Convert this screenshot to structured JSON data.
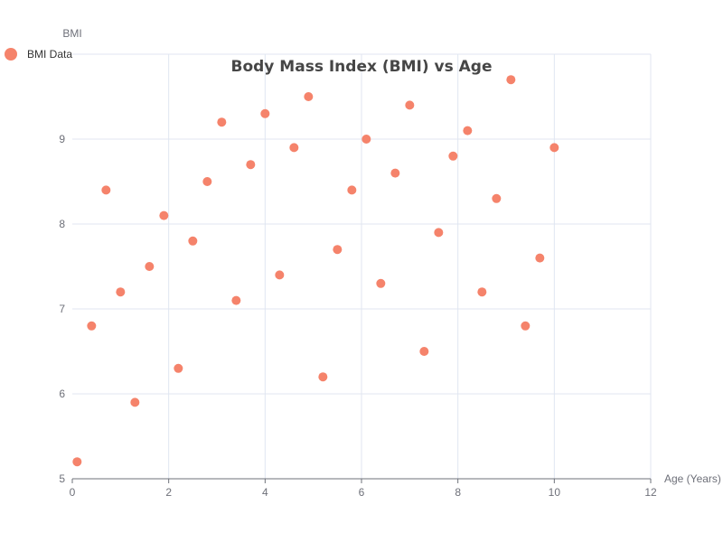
{
  "chart_data": {
    "type": "scatter",
    "title": "Body Mass Index (BMI) vs Age",
    "xlabel": "Age (Years)",
    "ylabel": "BMI",
    "xlim": [
      0,
      12
    ],
    "ylim": [
      5,
      10
    ],
    "xticks": [
      0,
      2,
      4,
      6,
      8,
      10,
      12
    ],
    "yticks": [
      5,
      6,
      7,
      8,
      9
    ],
    "grid": true,
    "legend_position": "top-left",
    "series": [
      {
        "name": "BMI Data",
        "color": "#f5836b",
        "points": [
          [
            0.1,
            5.2
          ],
          [
            0.4,
            6.8
          ],
          [
            0.7,
            8.4
          ],
          [
            1.0,
            7.2
          ],
          [
            1.3,
            5.9
          ],
          [
            1.6,
            7.5
          ],
          [
            1.9,
            8.1
          ],
          [
            2.2,
            6.3
          ],
          [
            2.5,
            7.8
          ],
          [
            2.8,
            8.5
          ],
          [
            3.1,
            9.2
          ],
          [
            3.4,
            7.1
          ],
          [
            3.7,
            8.7
          ],
          [
            4.0,
            9.3
          ],
          [
            4.3,
            7.4
          ],
          [
            4.6,
            8.9
          ],
          [
            4.9,
            9.5
          ],
          [
            5.2,
            6.2
          ],
          [
            5.5,
            7.7
          ],
          [
            5.8,
            8.4
          ],
          [
            6.1,
            9.0
          ],
          [
            6.4,
            7.3
          ],
          [
            6.7,
            8.6
          ],
          [
            7.0,
            9.4
          ],
          [
            7.3,
            6.5
          ],
          [
            7.6,
            7.9
          ],
          [
            7.9,
            8.8
          ],
          [
            8.2,
            9.1
          ],
          [
            8.5,
            7.2
          ],
          [
            8.8,
            8.3
          ],
          [
            9.1,
            9.7
          ],
          [
            9.4,
            6.8
          ],
          [
            9.7,
            7.6
          ],
          [
            10.0,
            8.9
          ]
        ]
      }
    ]
  }
}
